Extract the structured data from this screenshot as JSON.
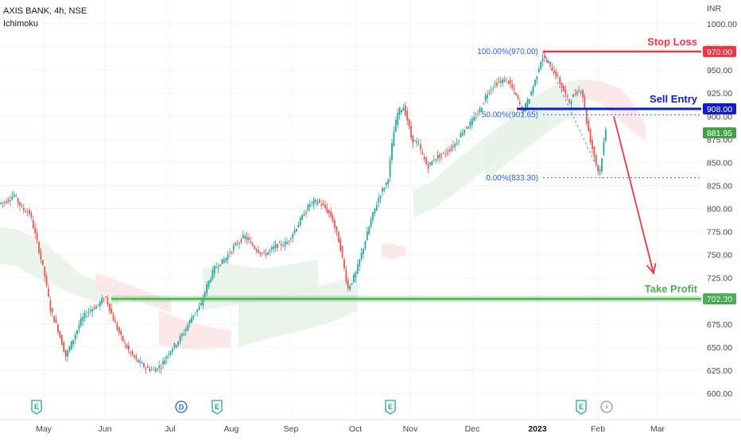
{
  "header": {
    "symbol": "AXIS BANK, 4h, NSE",
    "indicator": "Ichimoku"
  },
  "chart_data": {
    "type": "candlestick",
    "currency": "INR",
    "y_ticks": [
      1000,
      975,
      950,
      925,
      900,
      875,
      850,
      825,
      800,
      775,
      750,
      725,
      700,
      675,
      650,
      625,
      600
    ],
    "ylim": [
      595,
      1005
    ],
    "x_ticks": [
      {
        "label": "May",
        "bold": false
      },
      {
        "label": "Jun",
        "bold": false
      },
      {
        "label": "Jul",
        "bold": false
      },
      {
        "label": "Aug",
        "bold": false
      },
      {
        "label": "Sep",
        "bold": false
      },
      {
        "label": "Oct",
        "bold": false
      },
      {
        "label": "Nov",
        "bold": false
      },
      {
        "label": "Dec",
        "bold": false
      },
      {
        "label": "2023",
        "bold": true
      },
      {
        "label": "Feb",
        "bold": false
      },
      {
        "label": "Mar",
        "bold": false
      }
    ],
    "price_path": [
      [
        0,
        805
      ],
      [
        10,
        808
      ],
      [
        20,
        815
      ],
      [
        30,
        800
      ],
      [
        40,
        795
      ],
      [
        50,
        760
      ],
      [
        58,
        730
      ],
      [
        66,
        690
      ],
      [
        75,
        670
      ],
      [
        85,
        640
      ],
      [
        95,
        660
      ],
      [
        105,
        680
      ],
      [
        115,
        690
      ],
      [
        125,
        695
      ],
      [
        135,
        705
      ],
      [
        145,
        680
      ],
      [
        155,
        660
      ],
      [
        165,
        645
      ],
      [
        175,
        635
      ],
      [
        185,
        628
      ],
      [
        195,
        625
      ],
      [
        205,
        630
      ],
      [
        215,
        645
      ],
      [
        225,
        655
      ],
      [
        235,
        668
      ],
      [
        245,
        685
      ],
      [
        255,
        695
      ],
      [
        262,
        715
      ],
      [
        272,
        735
      ],
      [
        285,
        745
      ],
      [
        298,
        760
      ],
      [
        310,
        770
      ],
      [
        322,
        758
      ],
      [
        335,
        750
      ],
      [
        350,
        760
      ],
      [
        362,
        762
      ],
      [
        372,
        775
      ],
      [
        382,
        790
      ],
      [
        392,
        805
      ],
      [
        402,
        808
      ],
      [
        412,
        800
      ],
      [
        420,
        790
      ],
      [
        430,
        760
      ],
      [
        440,
        713
      ],
      [
        450,
        730
      ],
      [
        460,
        760
      ],
      [
        470,
        790
      ],
      [
        480,
        815
      ],
      [
        490,
        830
      ],
      [
        497,
        880
      ],
      [
        503,
        905
      ],
      [
        510,
        910
      ],
      [
        515,
        895
      ],
      [
        520,
        875
      ],
      [
        528,
        870
      ],
      [
        540,
        845
      ],
      [
        550,
        855
      ],
      [
        562,
        860
      ],
      [
        575,
        870
      ],
      [
        585,
        885
      ],
      [
        595,
        893
      ],
      [
        605,
        905
      ],
      [
        615,
        925
      ],
      [
        625,
        935
      ],
      [
        640,
        940
      ],
      [
        650,
        925
      ],
      [
        660,
        905
      ],
      [
        668,
        920
      ],
      [
        676,
        940
      ],
      [
        684,
        965
      ],
      [
        694,
        955
      ],
      [
        702,
        945
      ],
      [
        710,
        930
      ],
      [
        718,
        915
      ],
      [
        726,
        925
      ],
      [
        734,
        930
      ],
      [
        740,
        895
      ],
      [
        746,
        870
      ],
      [
        752,
        850
      ],
      [
        756,
        836
      ],
      [
        760,
        860
      ],
      [
        764,
        885
      ]
    ],
    "cloud_regions": [
      {
        "kind": "bullish",
        "x": [
          0,
          20,
          40,
          60,
          80,
          100,
          120,
          140,
          150
        ],
        "hi": [
          780,
          778,
          770,
          760,
          745,
          730,
          722,
          715,
          712
        ],
        "lo": [
          740,
          738,
          728,
          720,
          712,
          705,
          700,
          697,
          695
        ]
      },
      {
        "kind": "bearish",
        "x": [
          120,
          140,
          160,
          180,
          200,
          215
        ],
        "hi": [
          730,
          725,
          718,
          712,
          705,
          700
        ],
        "lo": [
          712,
          708,
          702,
          698,
          692,
          688
        ]
      },
      {
        "kind": "bearish",
        "x": [
          200,
          230,
          260,
          290
        ],
        "hi": [
          690,
          680,
          672,
          668
        ],
        "lo": [
          652,
          648,
          648,
          650
        ]
      },
      {
        "kind": "bullish",
        "x": [
          255,
          290,
          330,
          370,
          400
        ],
        "hi": [
          735,
          740,
          735,
          740,
          745
        ],
        "lo": [
          690,
          695,
          700,
          705,
          710
        ]
      },
      {
        "kind": "bullish",
        "x": [
          300,
          340,
          380,
          420,
          450
        ],
        "hi": [
          700,
          705,
          712,
          720,
          728
        ],
        "lo": [
          650,
          660,
          668,
          678,
          690
        ]
      },
      {
        "kind": "bearish",
        "x": [
          480,
          495,
          510
        ],
        "hi": [
          762,
          762,
          758
        ],
        "lo": [
          748,
          745,
          750
        ]
      },
      {
        "kind": "bullish",
        "x": [
          520,
          545,
          570,
          600,
          630,
          660,
          690
        ],
        "hi": [
          820,
          830,
          850,
          870,
          890,
          905,
          915
        ],
        "lo": [
          790,
          800,
          815,
          835,
          855,
          870,
          890
        ]
      },
      {
        "kind": "bullish",
        "x": [
          610,
          640,
          670,
          700,
          730
        ],
        "hi": [
          870,
          895,
          920,
          935,
          940
        ],
        "lo": [
          830,
          850,
          870,
          890,
          905
        ]
      },
      {
        "kind": "bearish",
        "x": [
          730,
          755,
          780,
          800,
          812
        ],
        "hi": [
          940,
          938,
          930,
          910,
          890
        ],
        "lo": [
          920,
          915,
          895,
          880,
          875
        ]
      }
    ],
    "fibonacci": [
      {
        "label": "100.00%(970.00)",
        "price": 970.0
      },
      {
        "label": "50.00%(901.65)",
        "price": 901.65
      },
      {
        "label": "0.00%(833.30)",
        "price": 833.3
      }
    ],
    "levels": [
      {
        "name": "Stop Loss",
        "price": 970.0,
        "value_label": "970.00",
        "color": "#f23645"
      },
      {
        "name": "Sell Entry",
        "price": 908.0,
        "value_label": "908.00",
        "color": "#0d1ec9"
      },
      {
        "name": "Take Profit",
        "price": 702.3,
        "value_label": "702.30",
        "color": "#4caf50"
      }
    ],
    "last_price": {
      "price": 881.95,
      "label": "881.95",
      "color": "#43a047"
    },
    "forecast_arrow": {
      "from": [
        772,
        900
      ],
      "to": [
        822,
        730
      ],
      "color": "#f23645"
    },
    "events": [
      {
        "label": "E",
        "x_index": 0
      },
      {
        "label": "D",
        "x_index": 1
      },
      {
        "label": "E",
        "x_index": 2
      },
      {
        "label": "E",
        "x_index": 3
      },
      {
        "label": "E",
        "x_index": 4
      },
      {
        "label": "⚡",
        "x_index": 5
      }
    ],
    "colors": {
      "up": "#26a69a",
      "down": "#ef5350",
      "grid": "#f0f3fa",
      "text": "#131722",
      "axis_text": "#434651",
      "cloud_bull": "#e6f2e6",
      "cloud_bear": "#fbe4e4",
      "fib": "#2962ff"
    }
  }
}
